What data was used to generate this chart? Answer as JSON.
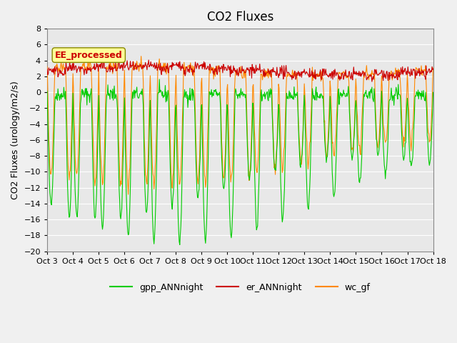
{
  "title": "CO2 Fluxes",
  "ylabel": "CO2 Fluxes (urology/m2/s)",
  "ylim": [
    -20,
    8
  ],
  "yticks": [
    -20,
    -18,
    -16,
    -14,
    -12,
    -10,
    -8,
    -6,
    -4,
    -2,
    0,
    2,
    4,
    6,
    8
  ],
  "x_labels": [
    "Oct 3",
    "Oct 4",
    "Oct 5",
    "Oct 6",
    "Oct 7",
    "Oct 8",
    "Oct 9",
    "Oct 10",
    "Oct 11",
    "Oct 12",
    "Oct 13",
    "Oct 14",
    "Oct 15",
    "Oct 16",
    "Oct 17",
    "Oct 18"
  ],
  "x_tick_pos": [
    0,
    1,
    2,
    3,
    4,
    5,
    6,
    7,
    8,
    9,
    10,
    11,
    12,
    13,
    14,
    15
  ],
  "annotation": "EE_processed",
  "colors": {
    "gpp_ANNnight": "#00CC00",
    "er_ANNnight": "#CC0000",
    "wc_gf": "#FF8800"
  },
  "fig_facecolor": "#F0F0F0",
  "ax_facecolor": "#E8E8E8",
  "grid_color": "#FFFFFF",
  "num_days": 15,
  "points_per_day": 48,
  "title_fontsize": 12,
  "label_fontsize": 9,
  "tick_fontsize": 8,
  "legend_fontsize": 9
}
